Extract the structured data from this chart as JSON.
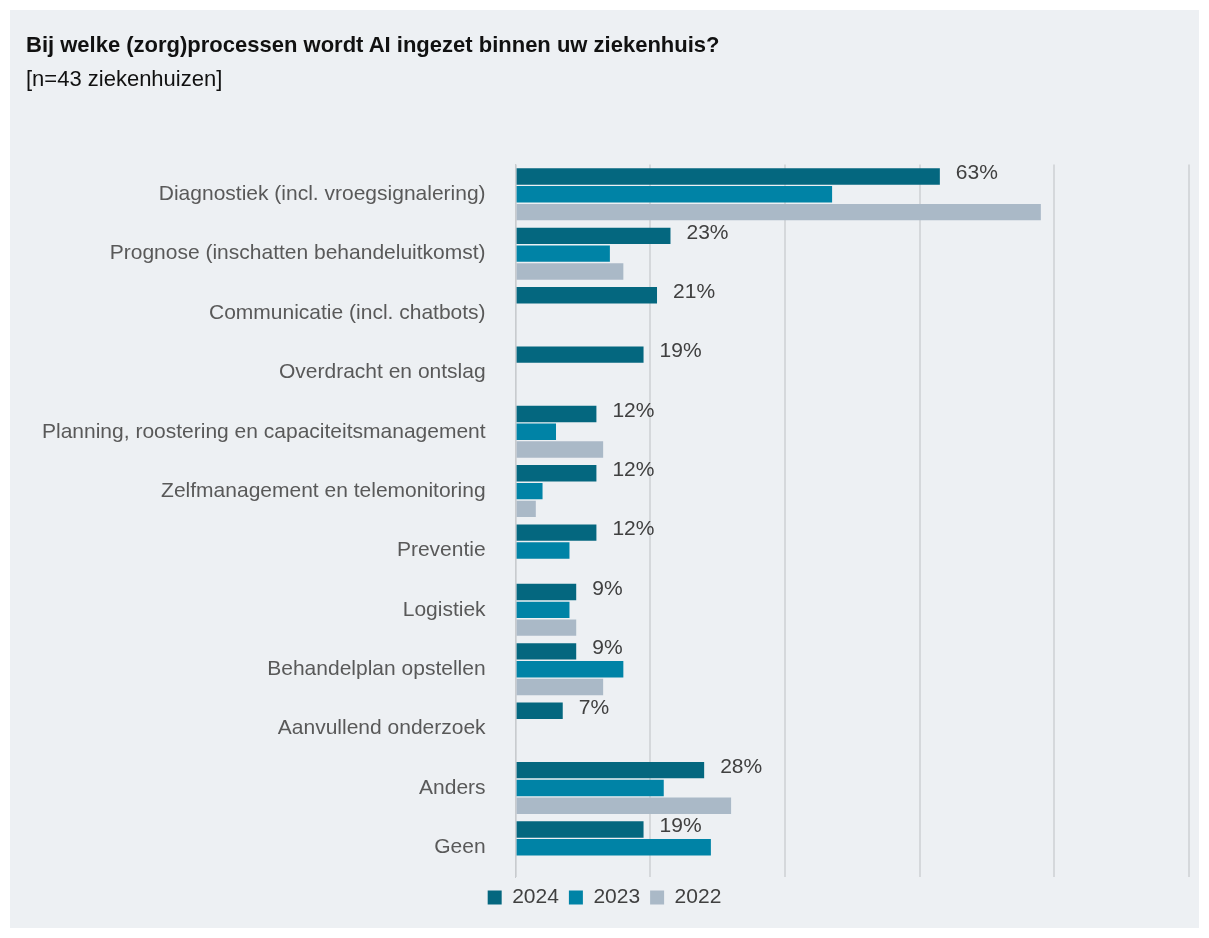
{
  "chart_data": {
    "type": "bar",
    "orientation": "horizontal",
    "title": "Bij welke (zorg)processen wordt AI ingezet binnen uw ziekenhuis?",
    "subtitle": "[n=43 ziekenhuizen]",
    "categories": [
      "Diagnostiek (incl. vroegsignalering)",
      "Prognose (inschatten behandeluitkomst)",
      "Communicatie (incl. chatbots)",
      "Overdracht en ontslag",
      "Planning, roostering en capaciteitsmanagement",
      "Zelfmanagement en telemonitoring",
      "Preventie",
      "Logistiek",
      "Behandelplan opstellen",
      "Aanvullend onderzoek",
      "Anders",
      "Geen"
    ],
    "series": [
      {
        "name": "2024",
        "color": "#04677f",
        "values": [
          63,
          23,
          21,
          19,
          12,
          12,
          12,
          9,
          9,
          7,
          28,
          19
        ],
        "value_labels": [
          "63%",
          "23%",
          "21%",
          "19%",
          "12%",
          "12%",
          "12%",
          "9%",
          "9%",
          "7%",
          "28%",
          "19%"
        ]
      },
      {
        "name": "2023",
        "color": "#0083a6",
        "values": [
          47,
          14,
          null,
          null,
          6,
          4,
          8,
          8,
          16,
          null,
          22,
          29
        ]
      },
      {
        "name": "2022",
        "color": "#aab9c7",
        "values": [
          78,
          16,
          null,
          null,
          13,
          3,
          null,
          9,
          13,
          null,
          32,
          null
        ]
      }
    ],
    "xlim": [
      0,
      100
    ],
    "xticks": [
      {
        "value": 0,
        "label": null
      },
      {
        "value": 20,
        "label": null
      },
      {
        "value": 40,
        "label": null
      },
      {
        "value": 60,
        "label": null
      },
      {
        "value": 80,
        "label": null
      },
      {
        "value": 100,
        "label": null
      }
    ],
    "tick_labels": "y",
    "grid": "x",
    "legend": "bottom"
  }
}
